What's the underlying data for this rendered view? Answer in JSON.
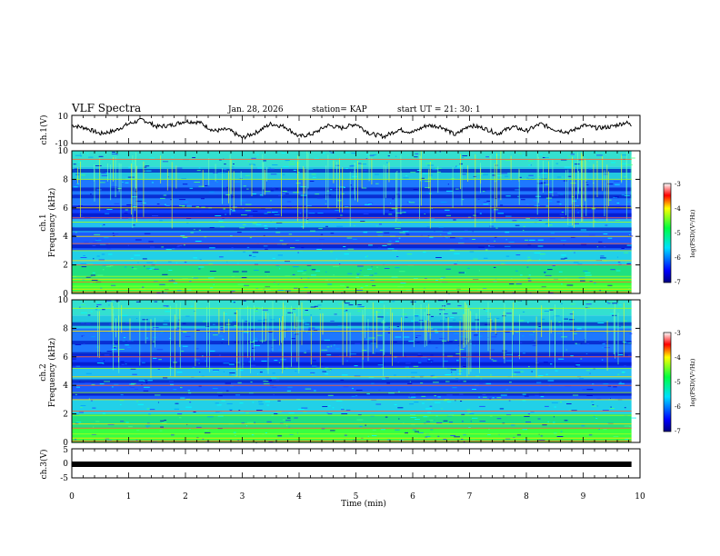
{
  "header": {
    "title": "VLF Spectra",
    "date": "Jan. 28, 2026",
    "station": "station= KAP",
    "start": "start  UT =   21: 30: 1"
  },
  "colorbar": {
    "label": "log(PSD)(V²/Hz)",
    "ticks": [
      "-3",
      "-4",
      "-5",
      "-6",
      "-7"
    ]
  },
  "chart_data": [
    {
      "id": "ch1-waveform",
      "type": "line",
      "ylabel": "ch.1(V)",
      "ylim": [
        -10,
        10
      ],
      "yticks": [
        "10",
        "-10"
      ],
      "x": [
        0,
        0.25,
        0.5,
        0.75,
        1,
        1.25,
        1.5,
        1.75,
        2,
        2.25,
        2.5,
        2.75,
        3,
        3.25,
        3.5,
        3.75,
        4,
        4.25,
        4.5,
        4.75,
        5,
        5.25,
        5.5,
        5.75,
        6,
        6.25,
        6.5,
        6.75,
        7,
        7.25,
        7.5,
        7.75,
        8,
        8.25,
        8.5,
        8.75,
        9,
        9.25,
        9.5,
        9.75,
        9.85
      ],
      "y": [
        3,
        1,
        -3,
        -1,
        4,
        7,
        2,
        3,
        6,
        5,
        -1,
        0,
        -6,
        -2,
        4,
        2,
        -5,
        -3,
        3,
        1,
        4,
        -3,
        -5,
        0,
        -2,
        3,
        2,
        -4,
        3,
        1,
        -3,
        2,
        -1,
        4,
        0,
        -2,
        3,
        1,
        2,
        5,
        3
      ]
    },
    {
      "id": "ch1-spectrogram",
      "type": "heatmap",
      "ylabel": "ch.1\nFrequency (kHz)",
      "ylim": [
        0,
        10
      ],
      "yticks": [
        "0",
        "2",
        "4",
        "6",
        "8",
        "10"
      ],
      "colorscale_range": [
        -7,
        -3
      ],
      "bands_khz": [
        0.1,
        0.3,
        0.5,
        0.8,
        1.0,
        1.2,
        2.0,
        2.3,
        3.0,
        3.5,
        4.0,
        5.0,
        5.3,
        6.0,
        8.0,
        9.4
      ],
      "dark_bands_khz": [
        3.3,
        4.5,
        5.5,
        6.0,
        6.8,
        7.3,
        8.6
      ]
    },
    {
      "id": "ch2-spectrogram",
      "type": "heatmap",
      "ylabel": "ch.2\nFrequency (kHz)",
      "ylim": [
        0,
        10
      ],
      "yticks": [
        "0",
        "2",
        "4",
        "6",
        "8",
        "10"
      ],
      "colorscale_range": [
        -7,
        -3
      ],
      "bands_khz": [
        0.1,
        0.3,
        0.6,
        1.0,
        1.3,
        1.9,
        2.2,
        3.0,
        3.5,
        4.0,
        4.6,
        5.2,
        6.0,
        7.8,
        9.4
      ],
      "dark_bands_khz": [
        3.4,
        4.3,
        5.5,
        6.2,
        7.0,
        8.3
      ]
    },
    {
      "id": "ch3-waveform",
      "type": "line",
      "ylabel": "ch.3(V)",
      "ylim": [
        -5,
        5
      ],
      "yticks": [
        "5",
        "0",
        "-5"
      ],
      "x": [
        0,
        9.85
      ],
      "y": [
        -0.9,
        -0.9
      ]
    }
  ],
  "xaxis": {
    "label": "Time (min)",
    "xlim": [
      0,
      10
    ],
    "ticks": [
      "0",
      "1",
      "2",
      "3",
      "4",
      "5",
      "6",
      "7",
      "8",
      "9",
      "10"
    ]
  }
}
